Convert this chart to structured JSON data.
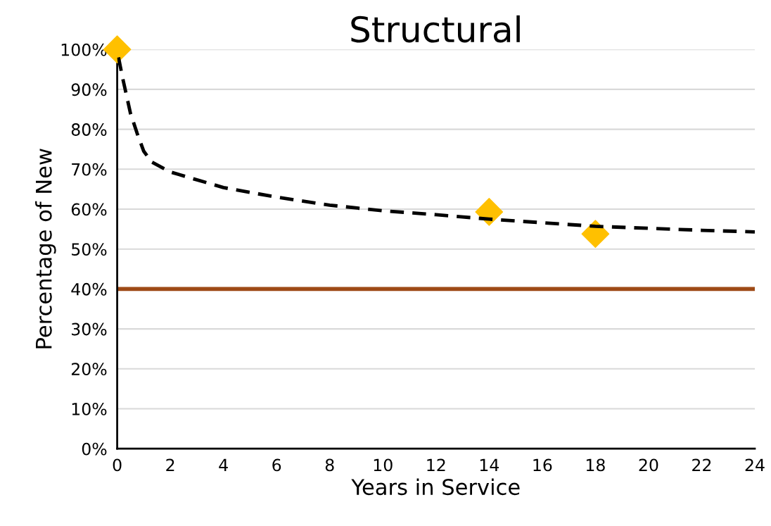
{
  "chart_data": {
    "type": "scatter",
    "title": "Structural",
    "xlabel": "Years in Service",
    "ylabel": "Percentage of New",
    "xlim": [
      0,
      24
    ],
    "xticks": [
      0,
      2,
      4,
      6,
      8,
      10,
      12,
      14,
      16,
      18,
      20,
      22,
      24
    ],
    "ylim": [
      0,
      100
    ],
    "yticks": [
      {
        "value": 0,
        "label": "0%"
      },
      {
        "value": 10,
        "label": "10%"
      },
      {
        "value": 20,
        "label": "20%"
      },
      {
        "value": 30,
        "label": "30%"
      },
      {
        "value": 40,
        "label": "40%"
      },
      {
        "value": 50,
        "label": "50%"
      },
      {
        "value": 60,
        "label": "60%"
      },
      {
        "value": 70,
        "label": "70%"
      },
      {
        "value": 80,
        "label": "80%"
      },
      {
        "value": 90,
        "label": "90%"
      },
      {
        "value": 100,
        "label": "100%"
      }
    ],
    "grid": "y",
    "legend": false,
    "series": [
      {
        "type": "line",
        "color": "#000000",
        "line_style": "dashed",
        "marker": "none",
        "x": [
          0.05,
          0.2,
          0.5,
          0.75,
          1.0,
          1.3,
          2,
          4,
          6,
          8,
          10,
          12,
          14,
          16,
          18,
          20,
          22,
          24
        ],
        "values": [
          98,
          93,
          84,
          79,
          74.5,
          71.8,
          69.3,
          65.4,
          63,
          61,
          59.6,
          58.6,
          57.5,
          56.6,
          55.7,
          55.2,
          54.7,
          54.3
        ]
      },
      {
        "color": "#ffc000",
        "marker": "diamond",
        "x": [
          0,
          14,
          18
        ],
        "values": [
          100,
          59.3,
          53.8
        ]
      }
    ],
    "ref_lines": [
      {
        "axis": "y",
        "value": 40,
        "color": "#9e4a16",
        "line_style": "solid"
      }
    ]
  }
}
